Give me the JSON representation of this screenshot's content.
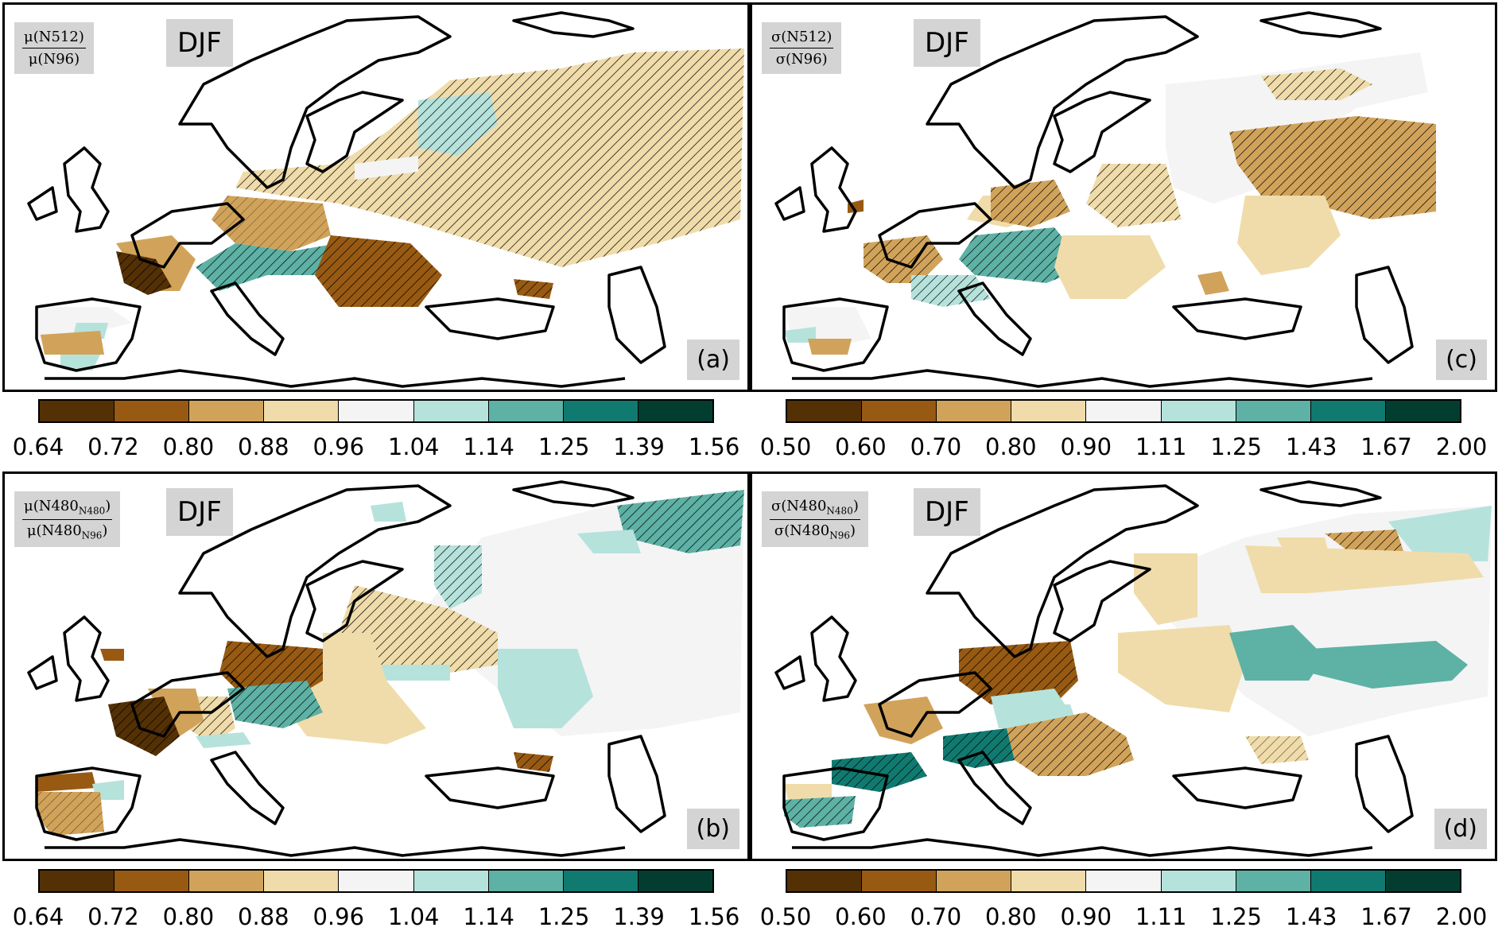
{
  "season_label": "DJF",
  "colors": {
    "scale": [
      "#543005",
      "#985a12",
      "#d1a35a",
      "#f0dcaa",
      "#f4f4f4",
      "#b6e2dc",
      "#5db1a5",
      "#107a70",
      "#023d30"
    ],
    "coast": "#000000",
    "label_box": "#d4d4d4"
  },
  "panels": {
    "a": {
      "letter": "(a)",
      "ratio_num": "μ(N512)",
      "ratio_den": "μ(N96)"
    },
    "b": {
      "letter": "(b)",
      "ratio_num": "μ(N480_N480)",
      "ratio_den": "μ(N480_N96)"
    },
    "c": {
      "letter": "(c)",
      "ratio_num": "σ(N512)",
      "ratio_den": "σ(N96)"
    },
    "d": {
      "letter": "(d)",
      "ratio_num": "σ(N480_N480)",
      "ratio_den": "σ(N480_N96)"
    }
  },
  "colorbars": {
    "mean": {
      "ticks": [
        "0.64",
        "0.72",
        "0.80",
        "0.88",
        "0.96",
        "1.04",
        "1.14",
        "1.25",
        "1.39",
        "1.56"
      ]
    },
    "std": {
      "ticks": [
        "0.50",
        "0.60",
        "0.70",
        "0.80",
        "0.90",
        "1.11",
        "1.25",
        "1.43",
        "1.67",
        "2.00"
      ]
    }
  }
}
